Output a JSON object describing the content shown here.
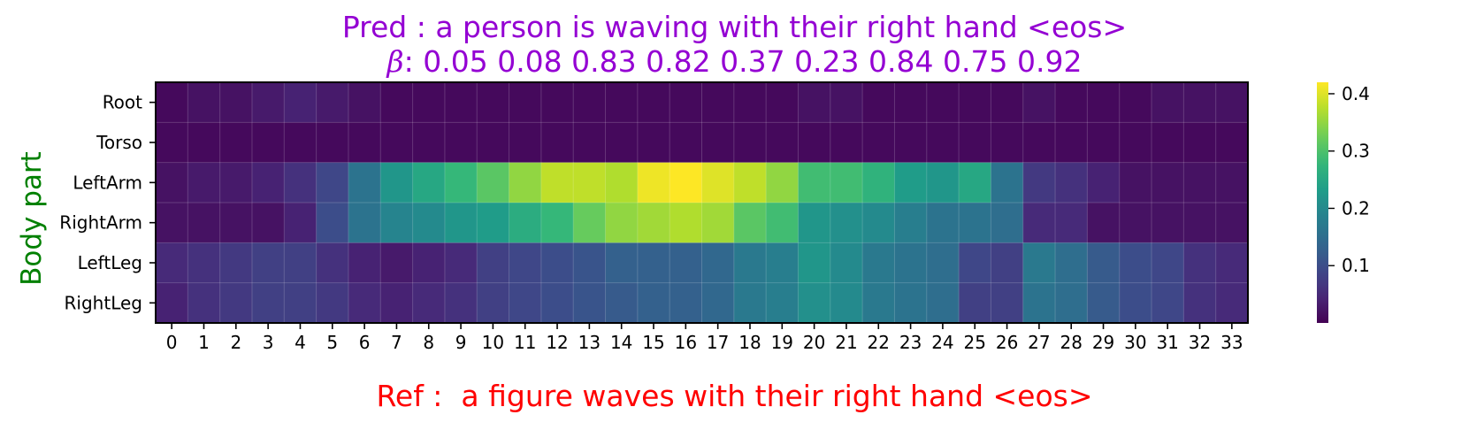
{
  "colors": {
    "title": "#9400d3",
    "xlabel": "#ff0000",
    "ylabel": "#008000",
    "colormap": "viridis"
  },
  "chart_data": {
    "type": "heatmap",
    "title_line1": "Pred : a person is waving with their right hand <eos>",
    "title_line2_symbol": "β",
    "title_line2_text": ": 0.05 0.08 0.83 0.82 0.37 0.23 0.84 0.75 0.92",
    "xlabel": "Ref :  a figure waves with their right hand <eos>",
    "ylabel": "Body part",
    "x_ticks": [
      "0",
      "1",
      "2",
      "3",
      "4",
      "5",
      "6",
      "7",
      "8",
      "9",
      "10",
      "11",
      "12",
      "13",
      "14",
      "15",
      "16",
      "17",
      "18",
      "19",
      "20",
      "21",
      "22",
      "23",
      "24",
      "25",
      "26",
      "27",
      "28",
      "29",
      "30",
      "31",
      "32",
      "33"
    ],
    "y_ticks": [
      "Root",
      "Torso",
      "LeftArm",
      "RightArm",
      "LeftLeg",
      "RightLeg"
    ],
    "colorbar": {
      "vmin": 0.0,
      "vmax": 0.42,
      "ticks": [
        "0.1",
        "0.2",
        "0.3",
        "0.4"
      ],
      "tick_values": [
        0.1,
        0.2,
        0.3,
        0.4
      ]
    },
    "values": [
      [
        0.01,
        0.02,
        0.02,
        0.03,
        0.04,
        0.03,
        0.02,
        0.01,
        0.01,
        0.01,
        0.01,
        0.01,
        0.01,
        0.01,
        0.01,
        0.01,
        0.01,
        0.01,
        0.01,
        0.01,
        0.02,
        0.02,
        0.01,
        0.01,
        0.01,
        0.01,
        0.01,
        0.02,
        0.01,
        0.01,
        0.01,
        0.02,
        0.02,
        0.02
      ],
      [
        0.01,
        0.01,
        0.01,
        0.01,
        0.01,
        0.01,
        0.01,
        0.01,
        0.01,
        0.01,
        0.01,
        0.01,
        0.01,
        0.01,
        0.01,
        0.01,
        0.01,
        0.01,
        0.01,
        0.01,
        0.01,
        0.01,
        0.01,
        0.01,
        0.01,
        0.01,
        0.01,
        0.01,
        0.01,
        0.01,
        0.01,
        0.01,
        0.01,
        0.01
      ],
      [
        0.02,
        0.03,
        0.03,
        0.04,
        0.06,
        0.09,
        0.16,
        0.22,
        0.25,
        0.28,
        0.31,
        0.35,
        0.38,
        0.38,
        0.37,
        0.41,
        0.42,
        0.4,
        0.38,
        0.35,
        0.29,
        0.29,
        0.27,
        0.23,
        0.22,
        0.25,
        0.16,
        0.07,
        0.06,
        0.04,
        0.02,
        0.02,
        0.02,
        0.02
      ],
      [
        0.02,
        0.02,
        0.02,
        0.02,
        0.04,
        0.1,
        0.16,
        0.19,
        0.2,
        0.22,
        0.23,
        0.26,
        0.28,
        0.32,
        0.35,
        0.36,
        0.37,
        0.36,
        0.31,
        0.29,
        0.22,
        0.21,
        0.2,
        0.18,
        0.16,
        0.16,
        0.15,
        0.05,
        0.05,
        0.02,
        0.02,
        0.02,
        0.02,
        0.02
      ],
      [
        0.05,
        0.06,
        0.07,
        0.08,
        0.08,
        0.06,
        0.04,
        0.03,
        0.04,
        0.05,
        0.08,
        0.09,
        0.1,
        0.11,
        0.13,
        0.13,
        0.13,
        0.14,
        0.17,
        0.18,
        0.22,
        0.2,
        0.17,
        0.16,
        0.15,
        0.09,
        0.08,
        0.17,
        0.15,
        0.12,
        0.1,
        0.09,
        0.06,
        0.05
      ],
      [
        0.04,
        0.06,
        0.07,
        0.08,
        0.08,
        0.07,
        0.05,
        0.04,
        0.05,
        0.06,
        0.08,
        0.09,
        0.1,
        0.11,
        0.12,
        0.13,
        0.13,
        0.14,
        0.17,
        0.18,
        0.21,
        0.2,
        0.17,
        0.16,
        0.15,
        0.08,
        0.08,
        0.16,
        0.15,
        0.12,
        0.1,
        0.09,
        0.06,
        0.05
      ]
    ]
  }
}
